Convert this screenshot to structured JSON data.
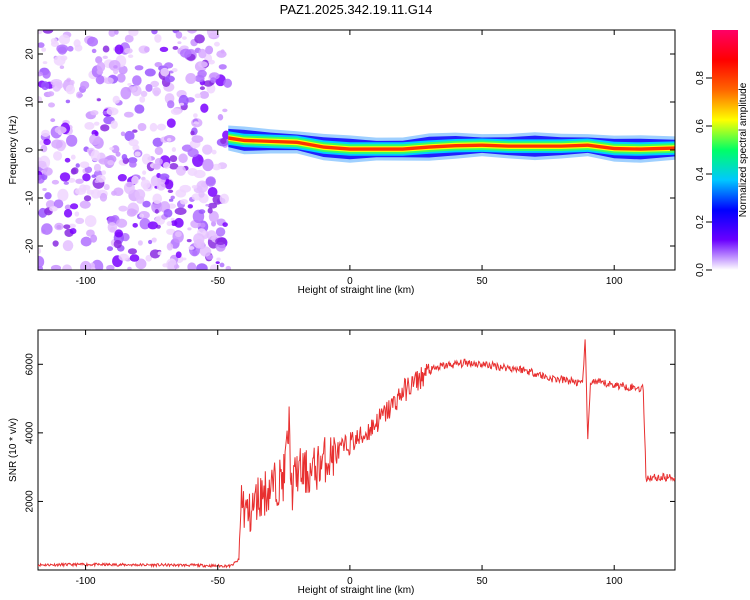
{
  "title": "PAZ1.2025.342.19.11.G14",
  "chart_data": [
    {
      "type": "heatmap",
      "name": "spectrogram",
      "xlabel": "Height of straight line (km)",
      "ylabel": "Frequency (Hz)",
      "xlim": [
        -118,
        123
      ],
      "ylim": [
        -25,
        25
      ],
      "xticks": [
        -100,
        -50,
        0,
        50,
        100
      ],
      "yticks": [
        20,
        10,
        0,
        -10,
        -20
      ],
      "noise_region_km": [
        -118,
        -46
      ],
      "signal_ridge": {
        "x": [
          -46,
          -40,
          -30,
          -20,
          -10,
          0,
          10,
          20,
          30,
          40,
          50,
          60,
          70,
          80,
          90,
          100,
          110,
          123
        ],
        "freq_hz": [
          2.5,
          2.0,
          1.8,
          1.6,
          0.6,
          0.2,
          0.2,
          0.2,
          0.6,
          0.9,
          1.0,
          0.8,
          0.8,
          0.8,
          1.0,
          0.3,
          0.2,
          0.4
        ]
      },
      "colorbar": {
        "label": "Normalized spectral amplitude",
        "ticks": [
          "0.0",
          "0.2",
          "0.4",
          "0.6",
          "0.8"
        ],
        "range": [
          0,
          1
        ],
        "colors": [
          "#ffffff",
          "#6a00ff",
          "#0000ff",
          "#00c8ff",
          "#00ff66",
          "#ffff00",
          "#ff6600",
          "#ff0000",
          "#ff0066"
        ]
      }
    },
    {
      "type": "line",
      "name": "snr",
      "xlabel": "Height of straight line (km)",
      "ylabel": "SNR (10 * v/v)",
      "xlim": [
        -118,
        123
      ],
      "ylim": [
        0,
        7000
      ],
      "xticks": [
        -100,
        -50,
        0,
        50,
        100
      ],
      "yticks": [
        2000,
        4000,
        6000
      ],
      "color": "#e83030",
      "series": [
        {
          "name": "SNR",
          "x": [
            -118,
            -100,
            -80,
            -60,
            -50,
            -45,
            -42,
            -41,
            -40,
            -38,
            -35,
            -30,
            -25,
            -23,
            -22,
            -20,
            -15,
            -10,
            -5,
            0,
            5,
            10,
            15,
            20,
            25,
            30,
            35,
            40,
            45,
            50,
            55,
            60,
            65,
            70,
            75,
            80,
            85,
            88,
            89,
            90,
            91,
            95,
            100,
            105,
            110,
            111,
            112,
            115,
            120,
            123
          ],
          "y": [
            150,
            160,
            150,
            140,
            120,
            120,
            300,
            2200,
            1800,
            1600,
            2100,
            2400,
            2700,
            4200,
            2300,
            2900,
            2800,
            3200,
            3400,
            3700,
            3900,
            4300,
            4700,
            5200,
            5500,
            5800,
            5950,
            6000,
            6050,
            6000,
            5950,
            5900,
            5850,
            5750,
            5600,
            5550,
            5500,
            5400,
            6800,
            3700,
            5500,
            5450,
            5400,
            5350,
            5300,
            5300,
            2700,
            2700,
            2700,
            2700
          ]
        }
      ]
    }
  ]
}
